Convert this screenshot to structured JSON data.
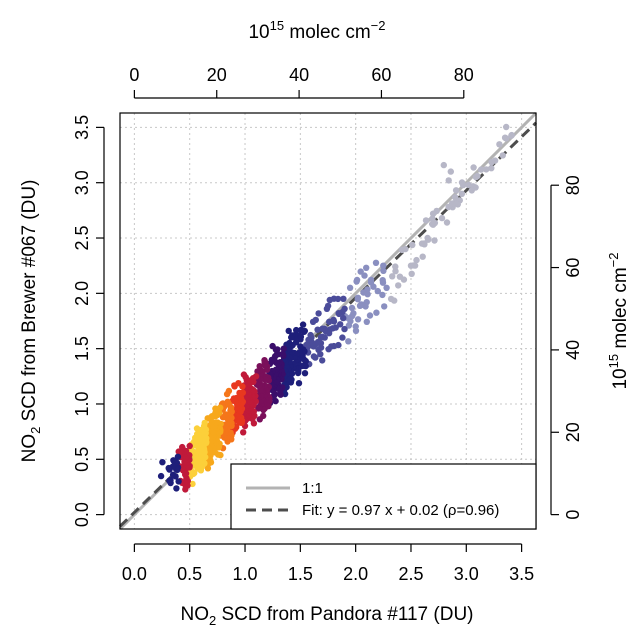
{
  "chart_data": {
    "type": "scatter",
    "xlabel": {
      "base": "NO",
      "sub": "2",
      "rest": " SCD from Pandora #117 (DU)"
    },
    "ylabel": {
      "base": "NO",
      "sub": "2",
      "rest": " SCD from Brewer #067 (DU)"
    },
    "top_axis_label": {
      "base": "10",
      "sup": "15",
      "mid": " molec cm",
      "sup2": "−2"
    },
    "right_axis_label": {
      "base": "10",
      "sup": "15",
      "mid": " molec cm",
      "sup2": "−2"
    },
    "xlim": [
      -0.13,
      3.63
    ],
    "ylim": [
      -0.13,
      3.63
    ],
    "x_ticks": [
      0.0,
      0.5,
      1.0,
      1.5,
      2.0,
      2.5,
      3.0,
      3.5
    ],
    "x_tick_labels": [
      "0.0",
      "0.5",
      "1.0",
      "1.5",
      "2.0",
      "2.5",
      "3.0",
      "3.5"
    ],
    "y_ticks": [
      0.0,
      0.5,
      1.0,
      1.5,
      2.0,
      2.5,
      3.0,
      3.5
    ],
    "y_tick_labels": [
      "0.0",
      "0.5",
      "1.0",
      "1.5",
      "2.0",
      "2.5",
      "3.0",
      "3.5"
    ],
    "top_ticks": [
      0,
      20,
      40,
      60,
      80
    ],
    "top_tick_labels": [
      "0",
      "20",
      "40",
      "60",
      "80"
    ],
    "right_ticks": [
      0,
      20,
      40,
      60,
      80
    ],
    "right_tick_labels": [
      "0",
      "20",
      "40",
      "60",
      "80"
    ],
    "molec_per_DU": 26.87,
    "grid": true,
    "legend_position": "bottom-right",
    "legend": [
      {
        "label": "1:1",
        "style": "solid",
        "color": "#b3b3b3"
      },
      {
        "label": "Fit: y = 0.97 x + 0.02 (ρ=0.96)",
        "style": "dashed",
        "color": "#4d4d4d"
      }
    ],
    "reference_line": {
      "slope": 1.0,
      "intercept": 0.0
    },
    "fit_line": {
      "slope": 0.97,
      "intercept": 0.02
    },
    "density_colors": [
      "#b7b7c7",
      "#8a8fc0",
      "#4b4c9a",
      "#1e1f7a",
      "#3a0e6b",
      "#7a0f5a",
      "#c01a3a",
      "#e8381f",
      "#f5761a",
      "#f7a81c",
      "#fcd03a"
    ],
    "points": [
      [
        0.31,
        0.42
      ],
      [
        0.35,
        0.36
      ],
      [
        0.38,
        0.47
      ],
      [
        0.4,
        0.3
      ],
      [
        0.42,
        0.52
      ],
      [
        0.44,
        0.4
      ],
      [
        0.45,
        0.58
      ],
      [
        0.47,
        0.33
      ],
      [
        0.48,
        0.49
      ],
      [
        0.5,
        0.44
      ],
      [
        0.5,
        0.62
      ],
      [
        0.52,
        0.55
      ],
      [
        0.53,
        0.38
      ],
      [
        0.54,
        0.48
      ],
      [
        0.55,
        0.66
      ],
      [
        0.56,
        0.51
      ],
      [
        0.57,
        0.43
      ],
      [
        0.58,
        0.59
      ],
      [
        0.59,
        0.72
      ],
      [
        0.6,
        0.54
      ],
      [
        0.61,
        0.47
      ],
      [
        0.62,
        0.64
      ],
      [
        0.63,
        0.58
      ],
      [
        0.63,
        0.8
      ],
      [
        0.64,
        0.52
      ],
      [
        0.65,
        0.69
      ],
      [
        0.66,
        0.61
      ],
      [
        0.67,
        0.75
      ],
      [
        0.68,
        0.56
      ],
      [
        0.69,
        0.66
      ],
      [
        0.7,
        0.84
      ],
      [
        0.71,
        0.7
      ],
      [
        0.72,
        0.6
      ],
      [
        0.73,
        0.77
      ],
      [
        0.74,
        0.68
      ],
      [
        0.75,
        0.9
      ],
      [
        0.76,
        0.74
      ],
      [
        0.77,
        0.64
      ],
      [
        0.78,
        0.82
      ],
      [
        0.79,
        0.73
      ],
      [
        0.8,
        0.95
      ],
      [
        0.81,
        0.79
      ],
      [
        0.82,
        0.7
      ],
      [
        0.83,
        0.88
      ],
      [
        0.84,
        0.78
      ],
      [
        0.85,
        1.0
      ],
      [
        0.86,
        0.84
      ],
      [
        0.87,
        0.74
      ],
      [
        0.88,
        0.93
      ],
      [
        0.89,
        0.83
      ],
      [
        0.9,
        1.05
      ],
      [
        0.91,
        0.89
      ],
      [
        0.92,
        0.79
      ],
      [
        0.93,
        0.98
      ],
      [
        0.94,
        0.88
      ],
      [
        0.95,
        1.1
      ],
      [
        0.96,
        0.93
      ],
      [
        0.97,
        0.83
      ],
      [
        0.98,
        1.02
      ],
      [
        0.99,
        0.93
      ],
      [
        1.0,
        1.14
      ],
      [
        1.01,
        0.98
      ],
      [
        1.02,
        0.88
      ],
      [
        1.03,
        1.07
      ],
      [
        1.04,
        0.97
      ],
      [
        1.05,
        1.2
      ],
      [
        1.06,
        1.02
      ],
      [
        1.07,
        0.92
      ],
      [
        1.08,
        1.12
      ],
      [
        1.09,
        1.02
      ],
      [
        1.1,
        1.25
      ],
      [
        1.11,
        1.06
      ],
      [
        1.12,
        0.96
      ],
      [
        1.13,
        1.17
      ],
      [
        1.14,
        1.07
      ],
      [
        1.15,
        1.3
      ],
      [
        1.16,
        1.11
      ],
      [
        1.17,
        1.0
      ],
      [
        1.18,
        1.22
      ],
      [
        1.19,
        1.12
      ],
      [
        1.2,
        1.34
      ],
      [
        1.21,
        1.15
      ],
      [
        1.22,
        1.05
      ],
      [
        1.23,
        1.27
      ],
      [
        1.24,
        1.17
      ],
      [
        1.25,
        1.4
      ],
      [
        1.26,
        1.2
      ],
      [
        1.27,
        1.09
      ],
      [
        1.28,
        1.31
      ],
      [
        1.29,
        1.22
      ],
      [
        1.3,
        1.45
      ],
      [
        1.31,
        1.25
      ],
      [
        1.32,
        1.13
      ],
      [
        1.33,
        1.36
      ],
      [
        1.34,
        1.27
      ],
      [
        1.35,
        1.5
      ],
      [
        1.36,
        1.3
      ],
      [
        1.37,
        1.18
      ],
      [
        1.38,
        1.41
      ],
      [
        1.39,
        1.31
      ],
      [
        1.4,
        1.55
      ],
      [
        1.41,
        1.34
      ],
      [
        1.42,
        1.22
      ],
      [
        1.43,
        1.46
      ],
      [
        1.44,
        1.36
      ],
      [
        1.45,
        1.6
      ],
      [
        1.47,
        1.4
      ],
      [
        1.48,
        1.28
      ],
      [
        1.5,
        1.52
      ],
      [
        1.52,
        1.44
      ],
      [
        1.54,
        1.66
      ],
      [
        1.56,
        1.48
      ],
      [
        1.58,
        1.36
      ],
      [
        1.6,
        1.6
      ],
      [
        1.62,
        1.52
      ],
      [
        1.64,
        1.76
      ],
      [
        1.66,
        1.56
      ],
      [
        1.68,
        1.45
      ],
      [
        1.7,
        1.68
      ],
      [
        1.72,
        1.6
      ],
      [
        1.74,
        1.86
      ],
      [
        1.76,
        1.64
      ],
      [
        1.78,
        1.52
      ],
      [
        1.8,
        1.76
      ],
      [
        1.82,
        1.69
      ],
      [
        1.84,
        1.95
      ],
      [
        1.86,
        1.72
      ],
      [
        1.88,
        1.6
      ],
      [
        1.9,
        1.86
      ],
      [
        1.92,
        1.78
      ],
      [
        1.95,
        2.05
      ],
      [
        1.98,
        1.82
      ],
      [
        2.0,
        1.7
      ],
      [
        2.02,
        1.96
      ],
      [
        2.05,
        1.9
      ],
      [
        2.08,
        2.16
      ],
      [
        2.1,
        1.92
      ],
      [
        2.13,
        1.8
      ],
      [
        2.16,
        2.06
      ],
      [
        2.2,
        2.02
      ],
      [
        2.25,
        2.25
      ],
      [
        2.28,
        2.05
      ],
      [
        2.32,
        1.95
      ],
      [
        2.36,
        2.2
      ],
      [
        2.4,
        2.15
      ],
      [
        2.45,
        2.4
      ],
      [
        2.5,
        2.25
      ],
      [
        2.55,
        2.3
      ],
      [
        2.6,
        2.45
      ],
      [
        2.65,
        2.5
      ],
      [
        2.7,
        2.62
      ],
      [
        2.78,
        2.68
      ],
      [
        2.84,
        2.78
      ],
      [
        2.9,
        2.82
      ],
      [
        2.96,
        2.9
      ],
      [
        3.02,
        2.98
      ],
      [
        3.1,
        3.06
      ],
      [
        3.18,
        3.12
      ],
      [
        3.26,
        3.2
      ],
      [
        3.36,
        3.4
      ],
      [
        3.41,
        3.43
      ],
      [
        2.86,
        3.1
      ],
      [
        2.7,
        2.72
      ],
      [
        3.05,
        2.93
      ]
    ]
  }
}
